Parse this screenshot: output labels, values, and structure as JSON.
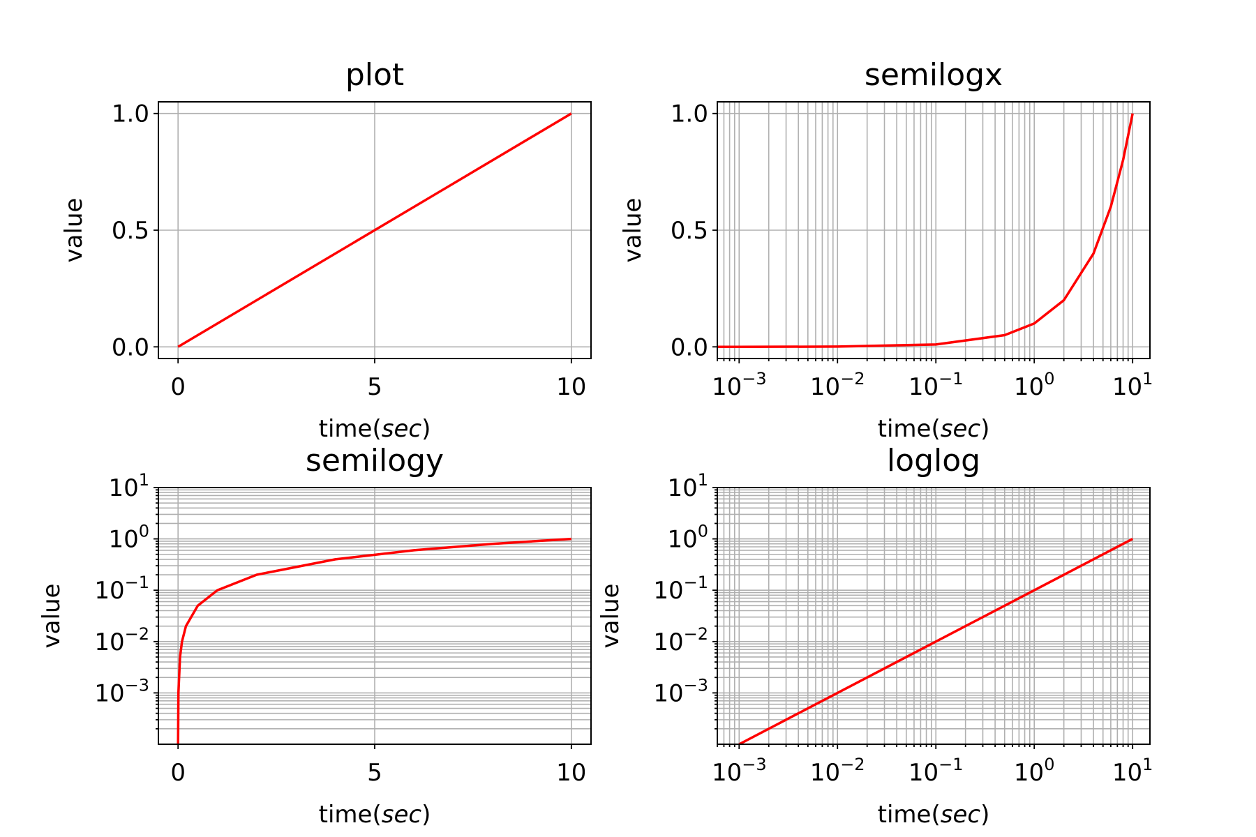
{
  "chart_data": [
    {
      "type": "line",
      "title": "plot",
      "xlabel": "time(",
      "xlabel_italic": "sec",
      "xlabel_suffix": ")",
      "ylabel": "value",
      "xscale": "linear",
      "yscale": "linear",
      "xlim": [
        -0.5,
        10.5
      ],
      "ylim": [
        -0.05,
        1.05
      ],
      "xticks": [
        0,
        5,
        10
      ],
      "yticks": [
        0.0,
        0.5,
        1.0
      ],
      "xtick_labels": [
        "0",
        "5",
        "10"
      ],
      "ytick_labels": [
        "0.0",
        "0.5",
        "1.0"
      ],
      "grid": true,
      "series": [
        {
          "x": [
            0,
            2.5,
            5,
            7.5,
            10
          ],
          "y": [
            0,
            0.25,
            0.5,
            0.75,
            1.0
          ],
          "color": "#ff0000"
        }
      ]
    },
    {
      "type": "line",
      "title": "semilogx",
      "xlabel": "time(",
      "xlabel_italic": "sec",
      "xlabel_suffix": ")",
      "ylabel": "value",
      "xscale": "log",
      "yscale": "linear",
      "xlim": [
        0.0006,
        15
      ],
      "ylim": [
        -0.05,
        1.05
      ],
      "xticks": [
        0.001,
        0.01,
        0.1,
        1,
        10
      ],
      "yticks": [
        0.0,
        0.5,
        1.0
      ],
      "xtick_labels": [
        {
          "base": "10",
          "exp": "−3"
        },
        {
          "base": "10",
          "exp": "−2"
        },
        {
          "base": "10",
          "exp": "−1"
        },
        {
          "base": "10",
          "exp": "0"
        },
        {
          "base": "10",
          "exp": "1"
        }
      ],
      "ytick_labels": [
        "0.0",
        "0.5",
        "1.0"
      ],
      "grid": true,
      "series": [
        {
          "x": [
            0.0006,
            0.001,
            0.01,
            0.1,
            0.5,
            1,
            2,
            4,
            6,
            8,
            10
          ],
          "y": [
            0.0,
            0.0,
            0.001,
            0.01,
            0.05,
            0.1,
            0.2,
            0.4,
            0.6,
            0.8,
            1.0
          ],
          "color": "#ff0000"
        }
      ]
    },
    {
      "type": "line",
      "title": "semilogy",
      "xlabel": "time(",
      "xlabel_italic": "sec",
      "xlabel_suffix": ")",
      "ylabel": "value",
      "xscale": "linear",
      "yscale": "log",
      "xlim": [
        -0.5,
        10.5
      ],
      "ylim": [
        0.0001,
        10
      ],
      "xticks": [
        0,
        5,
        10
      ],
      "yticks": [
        0.001,
        0.01,
        0.1,
        1,
        10
      ],
      "xtick_labels": [
        "0",
        "5",
        "10"
      ],
      "ytick_labels": [
        {
          "base": "10",
          "exp": "−3"
        },
        {
          "base": "10",
          "exp": "−2"
        },
        {
          "base": "10",
          "exp": "−1"
        },
        {
          "base": "10",
          "exp": "0"
        },
        {
          "base": "10",
          "exp": "1"
        }
      ],
      "grid": true,
      "series": [
        {
          "x": [
            0.001,
            0.01,
            0.05,
            0.1,
            0.2,
            0.5,
            1,
            2,
            4,
            6,
            8,
            10
          ],
          "y": [
            0.0001,
            0.001,
            0.005,
            0.01,
            0.02,
            0.05,
            0.1,
            0.2,
            0.4,
            0.6,
            0.8,
            1.0
          ],
          "color": "#ff0000"
        }
      ]
    },
    {
      "type": "line",
      "title": "loglog",
      "xlabel": "time(",
      "xlabel_italic": "sec",
      "xlabel_suffix": ")",
      "ylabel": "value",
      "xscale": "log",
      "yscale": "log",
      "xlim": [
        0.0006,
        15
      ],
      "ylim": [
        0.0001,
        10
      ],
      "xticks": [
        0.001,
        0.01,
        0.1,
        1,
        10
      ],
      "yticks": [
        0.001,
        0.01,
        0.1,
        1,
        10
      ],
      "xtick_labels": [
        {
          "base": "10",
          "exp": "−3"
        },
        {
          "base": "10",
          "exp": "−2"
        },
        {
          "base": "10",
          "exp": "−1"
        },
        {
          "base": "10",
          "exp": "0"
        },
        {
          "base": "10",
          "exp": "1"
        }
      ],
      "ytick_labels": [
        {
          "base": "10",
          "exp": "−3"
        },
        {
          "base": "10",
          "exp": "−2"
        },
        {
          "base": "10",
          "exp": "−1"
        },
        {
          "base": "10",
          "exp": "0"
        },
        {
          "base": "10",
          "exp": "1"
        }
      ],
      "grid": true,
      "series": [
        {
          "x": [
            0.001,
            10
          ],
          "y": [
            0.0001,
            1.0
          ],
          "color": "#ff0000"
        }
      ]
    }
  ]
}
